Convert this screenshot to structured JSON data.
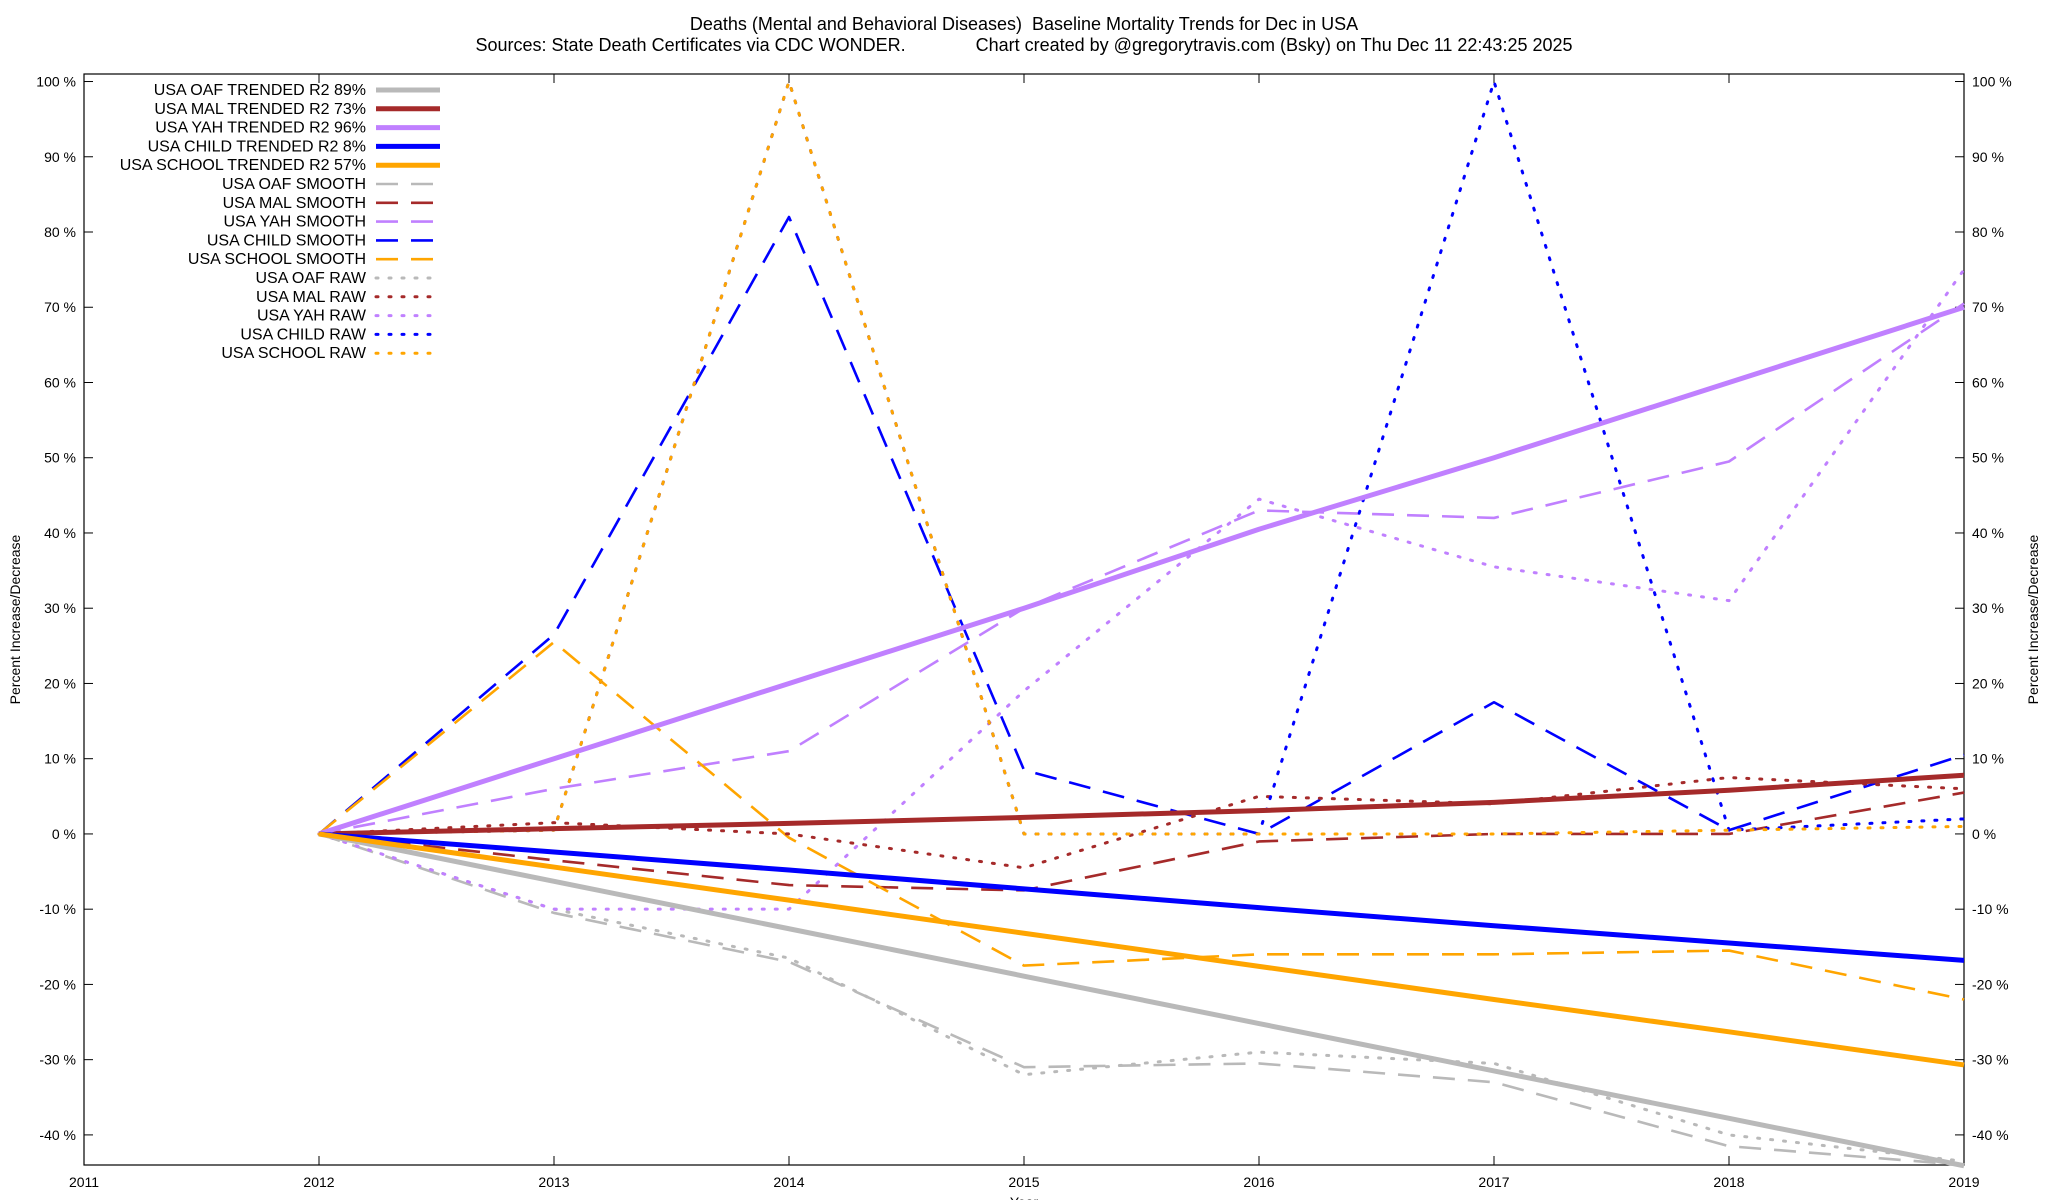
{
  "chart_data": {
    "type": "line",
    "title": "Deaths (Mental and Behavioral Diseases)  Baseline Mortality Trends for Dec in USA",
    "subtitle": "Sources: State Death Certificates via CDC WONDER.              Chart created by @gregorytravis.com (Bsky) on Thu Dec 11 22:43:25 2025",
    "xlabel": "Year",
    "ylabel": "Percent Increase/Decrease",
    "y2label": "Percent Increase/Decrease",
    "xlim": [
      2011,
      2019
    ],
    "ylim": [
      -44,
      101
    ],
    "x_ticks": [
      "2011",
      "2012",
      "2013",
      "2014",
      "2015",
      "2016",
      "2017",
      "2018",
      "2019"
    ],
    "y_ticks": [
      "100 %",
      "90 %",
      "80 %",
      "70 %",
      "60 %",
      "50 %",
      "40 %",
      "30 %",
      "20 %",
      "10 %",
      "0 %",
      "-10 %",
      "-20 %",
      "-30 %",
      "-40 %"
    ],
    "y_tick_values": [
      100,
      90,
      80,
      70,
      60,
      50,
      40,
      30,
      20,
      10,
      0,
      -10,
      -20,
      -30,
      -40
    ],
    "legend_position": "top-left",
    "grid": false,
    "x": [
      2012,
      2013,
      2014,
      2015,
      2016,
      2017,
      2018,
      2019
    ],
    "series": [
      {
        "name": "USA OAF TRENDED R2  89%",
        "style": "trend",
        "color": "#b9b9b9",
        "values": [
          0,
          -6.3,
          -12.6,
          -18.9,
          -25.2,
          -31.5,
          -37.8,
          -44.1
        ]
      },
      {
        "name": "USA MAL TRENDED R2  73%",
        "style": "trend",
        "color": "#a52a2a",
        "values": [
          0,
          0.7,
          1.4,
          2.2,
          3.1,
          4.2,
          5.8,
          7.8
        ]
      },
      {
        "name": "USA YAH TRENDED R2  96%",
        "style": "trend",
        "color": "#c080ff",
        "values": [
          0,
          10.0,
          20.0,
          30.0,
          40.5,
          50.0,
          60.0,
          70.0
        ]
      },
      {
        "name": "USA CHILD TRENDED R2   8%",
        "style": "trend",
        "color": "#0000ff",
        "values": [
          0,
          -2.4,
          -4.8,
          -7.3,
          -9.8,
          -12.2,
          -14.5,
          -16.8
        ]
      },
      {
        "name": "USA SCHOOL TRENDED R2  57%",
        "style": "trend",
        "color": "#ffa500",
        "values": [
          0,
          -4.4,
          -8.8,
          -13.2,
          -17.6,
          -22.0,
          -26.3,
          -30.7
        ]
      },
      {
        "name": "USA OAF SMOOTH",
        "style": "smooth",
        "color": "#b9b9b9",
        "values": [
          0,
          -10.5,
          -17.0,
          -31.0,
          -30.5,
          -33.0,
          -41.5,
          -44.0
        ]
      },
      {
        "name": "USA MAL SMOOTH",
        "style": "smooth",
        "color": "#a52a2a",
        "values": [
          0,
          -3.5,
          -6.8,
          -7.5,
          -1.0,
          0.0,
          0.0,
          5.5
        ]
      },
      {
        "name": "USA YAH SMOOTH",
        "style": "smooth",
        "color": "#c080ff",
        "values": [
          0,
          6.0,
          11.0,
          30.0,
          43.0,
          42.0,
          49.5,
          70.5
        ]
      },
      {
        "name": "USA CHILD SMOOTH",
        "style": "smooth",
        "color": "#0000ff",
        "values": [
          0,
          26.5,
          82.0,
          8.5,
          0.0,
          17.5,
          0.5,
          10.5
        ]
      },
      {
        "name": "USA SCHOOL SMOOTH",
        "style": "smooth",
        "color": "#ffa500",
        "values": [
          0,
          25.5,
          -0.5,
          -17.5,
          -16.0,
          -16.0,
          -15.5,
          -22.0
        ]
      },
      {
        "name": "USA OAF RAW",
        "style": "raw",
        "color": "#b9b9b9",
        "values": [
          0,
          -10.0,
          -16.5,
          -32.0,
          -29.0,
          -30.5,
          -40.0,
          -43.5
        ]
      },
      {
        "name": "USA MAL RAW",
        "style": "raw",
        "color": "#a52a2a",
        "values": [
          0,
          1.5,
          0.0,
          -4.5,
          5.0,
          4.0,
          7.5,
          6.0
        ]
      },
      {
        "name": "USA YAH RAW",
        "style": "raw",
        "color": "#c080ff",
        "values": [
          0,
          -10.0,
          -10.0,
          19.0,
          44.5,
          35.5,
          31.0,
          75.0
        ]
      },
      {
        "name": "USA CHILD RAW",
        "style": "raw",
        "color": "#0000ff",
        "values": [
          0,
          0.5,
          100.0,
          0.0,
          0.0,
          100.0,
          0.5,
          2.0
        ]
      },
      {
        "name": "USA SCHOOL RAW",
        "style": "raw",
        "color": "#ffa500",
        "values": [
          0,
          0.5,
          100.0,
          0.0,
          0.0,
          0.0,
          0.5,
          1.0
        ]
      }
    ]
  }
}
